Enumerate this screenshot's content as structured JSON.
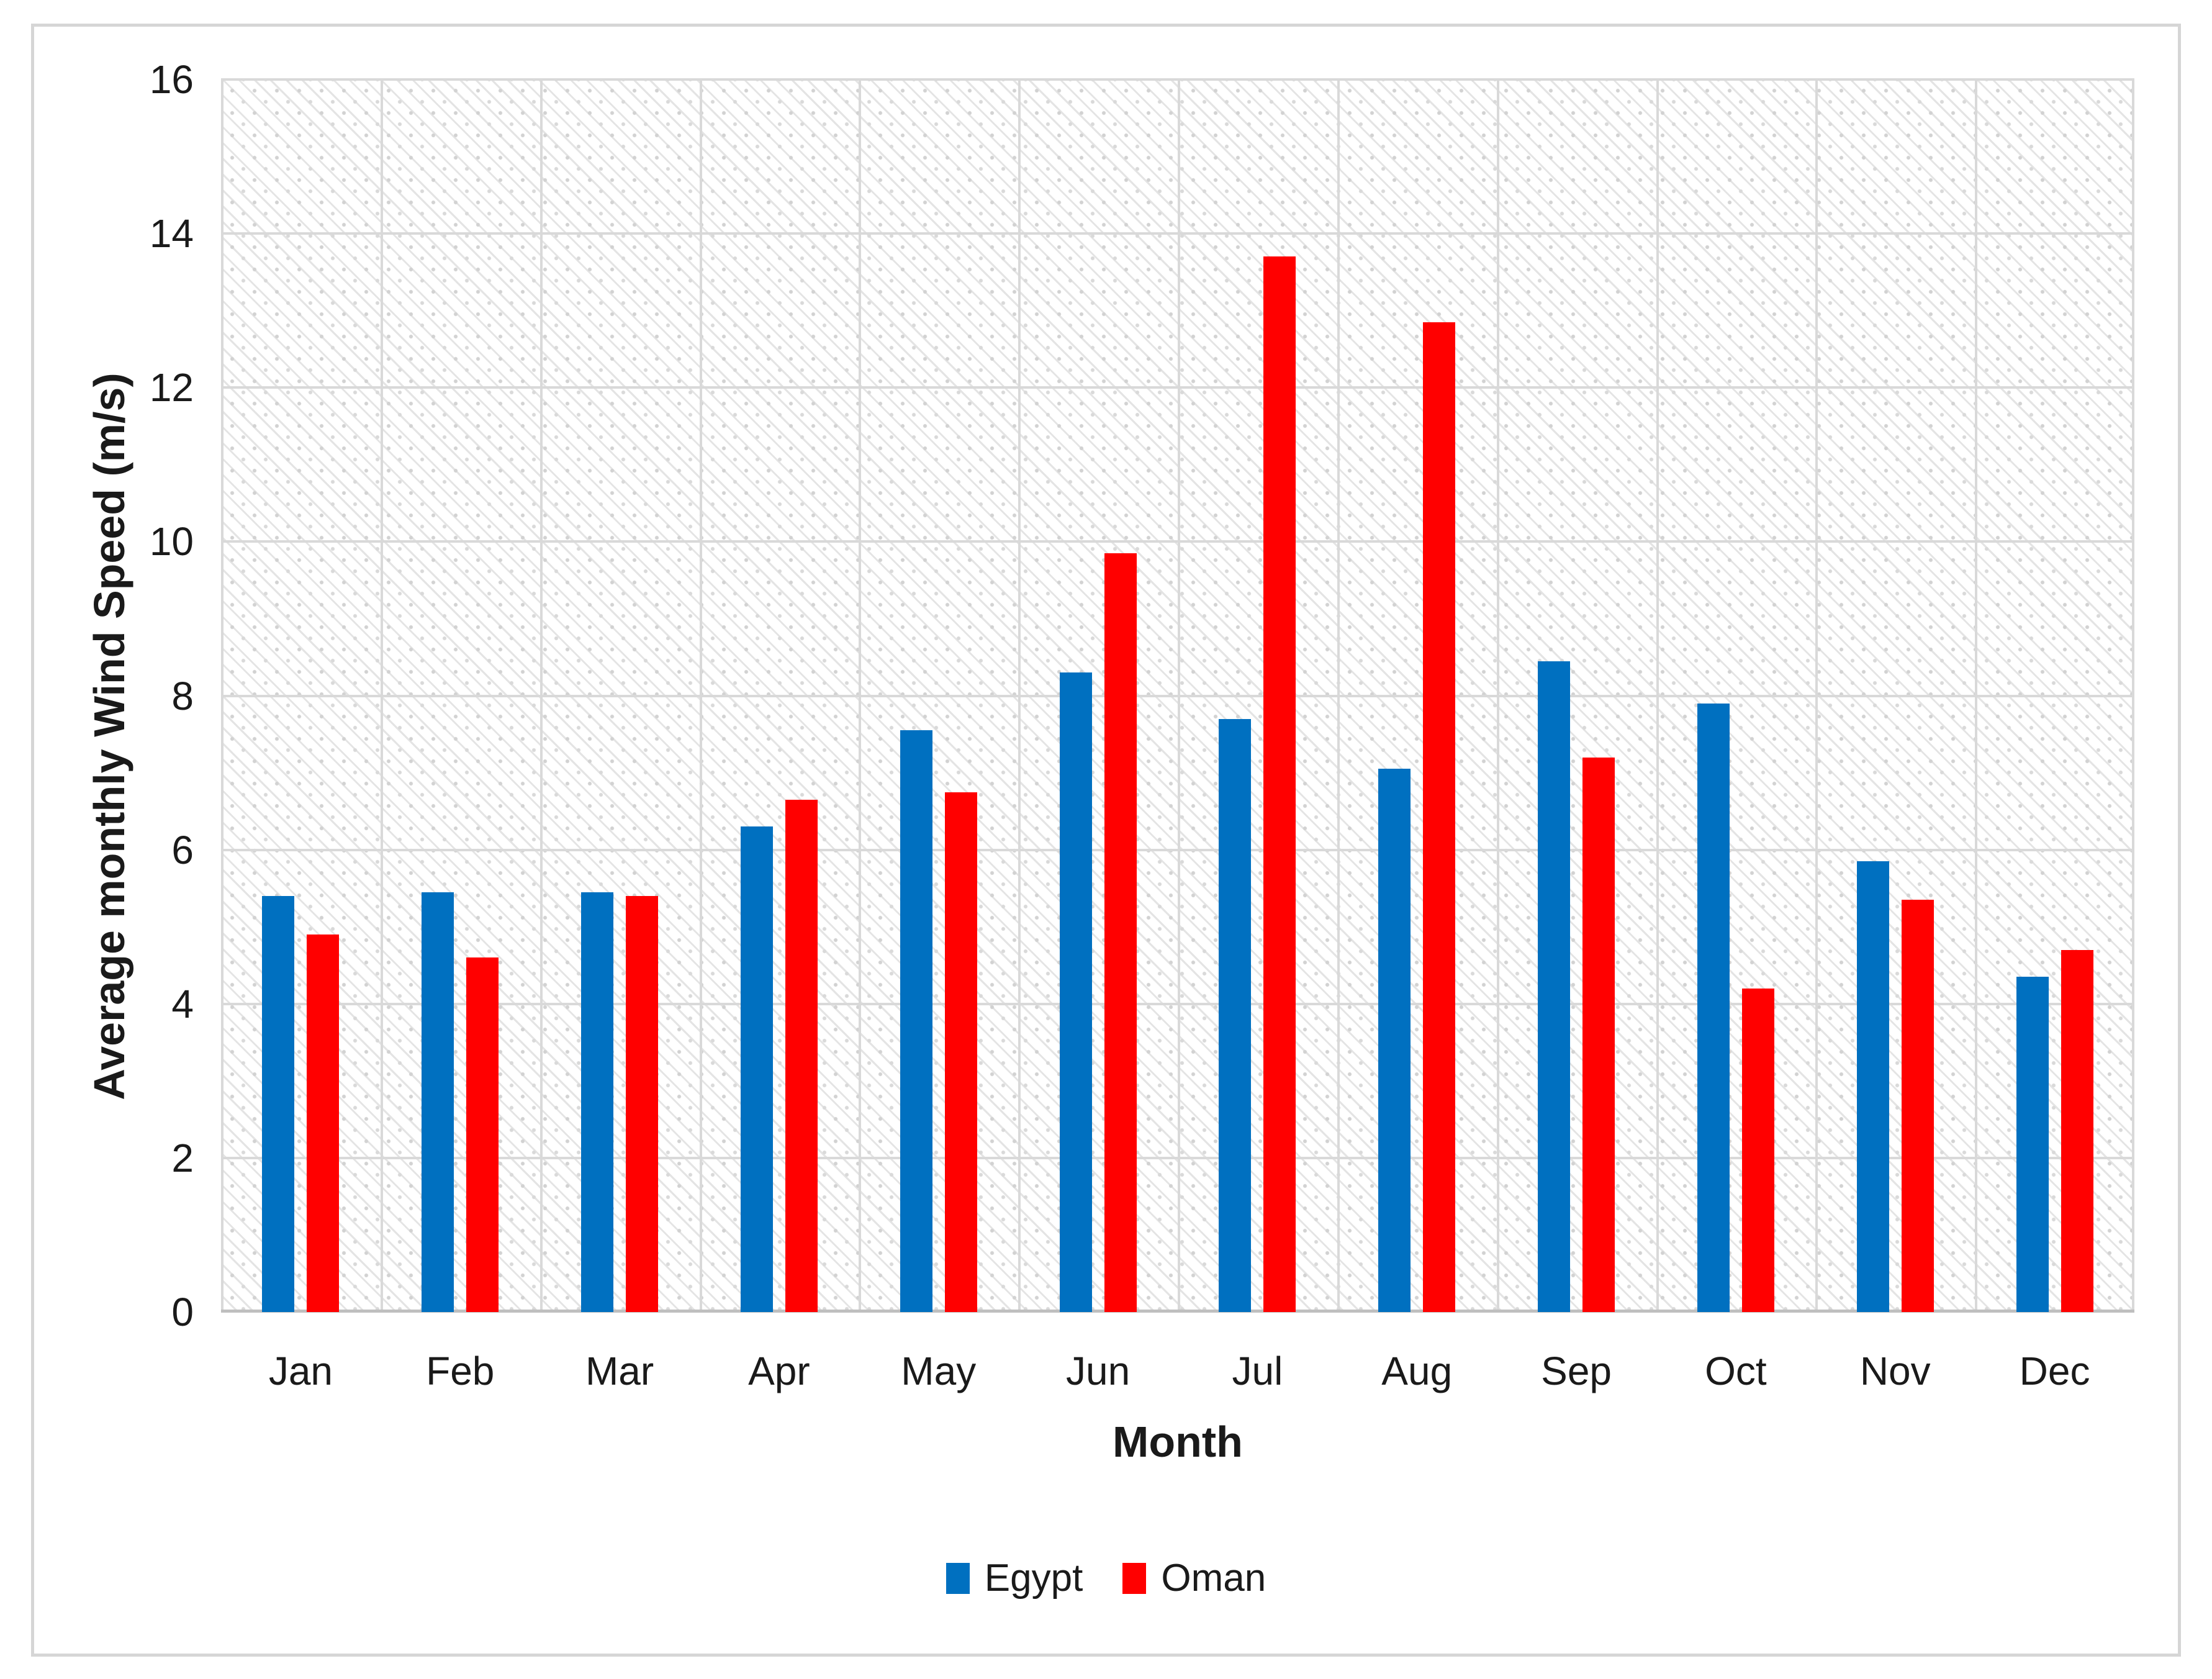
{
  "figure": {
    "background": "#ffffff",
    "frame_border_color": "#d6d6d6"
  },
  "chart_data": {
    "type": "bar",
    "title": "",
    "categories": [
      "Jan",
      "Feb",
      "Mar",
      "Apr",
      "May",
      "Jun",
      "Jul",
      "Aug",
      "Sep",
      "Oct",
      "Nov",
      "Dec"
    ],
    "series": [
      {
        "name": "Egypt",
        "color": "#0070C0",
        "values": [
          5.4,
          5.45,
          5.45,
          6.3,
          7.55,
          8.3,
          7.7,
          7.05,
          8.45,
          7.9,
          5.85,
          4.35
        ]
      },
      {
        "name": "Oman",
        "color": "#FF0000",
        "values": [
          4.9,
          4.6,
          5.4,
          6.65,
          6.75,
          9.85,
          13.7,
          12.85,
          7.2,
          4.2,
          5.35,
          4.7
        ]
      }
    ],
    "xlabel": "Month",
    "ylabel": "Average monthly Wind Speed (m/s)",
    "ylim": [
      0,
      16
    ],
    "ytick_step": 2,
    "yticks": [
      0,
      2,
      4,
      6,
      8,
      10,
      12,
      14,
      16
    ],
    "grid": true,
    "plot_background": "diagonal-hatch",
    "gridline_color": "#d9d9d9",
    "axis_line_color": "#bfbfbf",
    "legend_position": "bottom"
  }
}
